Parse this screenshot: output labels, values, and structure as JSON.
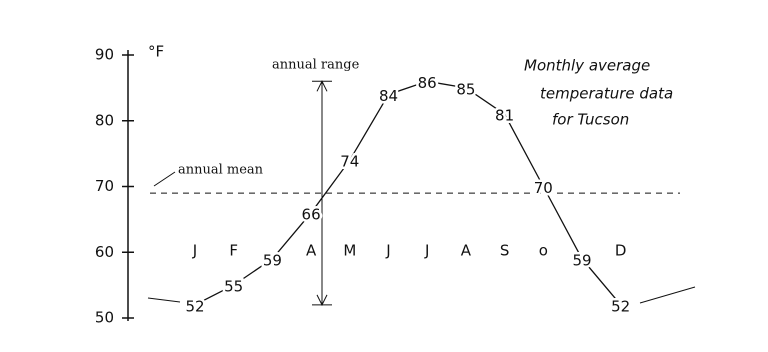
{
  "chart_data": {
    "type": "line",
    "title": [
      "Monthly average",
      "temperature data",
      "for Tucson"
    ],
    "y_label": "°F",
    "categories": [
      "J",
      "F",
      null,
      "A",
      "M",
      "J",
      "J",
      "A",
      "S",
      "o",
      null,
      "D"
    ],
    "series": [
      {
        "name": "Tucson",
        "color": "#111111",
        "values": [
          52,
          55,
          59,
          66,
          74,
          84,
          86,
          85,
          81,
          70,
          59,
          52
        ]
      }
    ],
    "ylim": [
      50,
      90
    ],
    "yticks": [
      50,
      60,
      70,
      80,
      90
    ],
    "reference_line": {
      "label": "annual mean",
      "value": 69
    },
    "range_annotation": "annual range"
  }
}
